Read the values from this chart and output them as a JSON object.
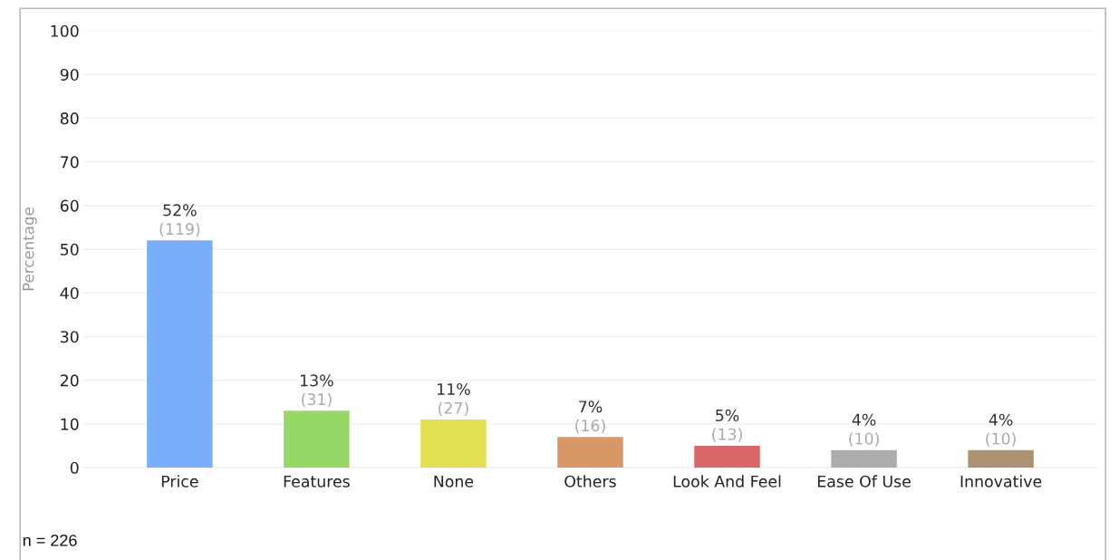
{
  "chart_data": {
    "type": "bar",
    "ylabel": "Percentage",
    "categories": [
      "Price",
      "Features",
      "None",
      "Others",
      "Look And Feel",
      "Ease Of Use",
      "Innovative"
    ],
    "values": [
      52,
      13,
      11,
      7,
      5,
      4,
      4
    ],
    "colors": [
      "#7aaefc",
      "#96d765",
      "#e3df52",
      "#d79766",
      "#d96767",
      "#acacac",
      "#ab9272"
    ],
    "value_labels": [
      "52%\n(119)",
      "13%\n(31)",
      "11%\n(27)",
      "7%\n(16)",
      "5%\n(13)",
      "4%\n(10)",
      "4%\n(10)"
    ],
    "ylim": [
      0,
      100
    ],
    "yticks": [
      0,
      10,
      20,
      30,
      40,
      50,
      60,
      70,
      80,
      90,
      100
    ],
    "grid": "y",
    "legend": false,
    "annotations": [
      "n = 226"
    ]
  }
}
